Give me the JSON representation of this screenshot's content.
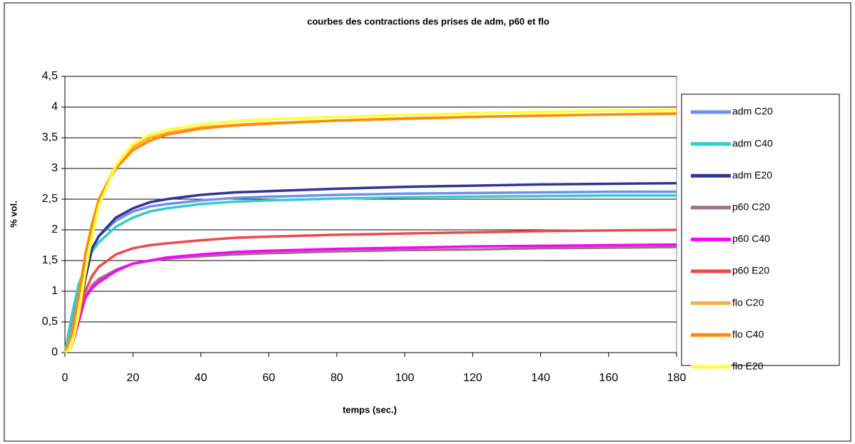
{
  "chart_data": {
    "type": "line",
    "title": "courbes des contractions des prises de adm, p60 et flo",
    "x_label": "temps (sec.)",
    "y_label": "% vol.",
    "x": [
      0,
      2,
      4,
      6,
      8,
      10,
      15,
      20,
      25,
      30,
      40,
      50,
      60,
      80,
      100,
      120,
      140,
      160,
      180
    ],
    "series": [
      {
        "name": "adm C20",
        "color": "#6f8ff0",
        "values": [
          0,
          0.5,
          1.0,
          1.4,
          1.7,
          1.9,
          2.15,
          2.3,
          2.38,
          2.42,
          2.48,
          2.52,
          2.54,
          2.57,
          2.59,
          2.6,
          2.61,
          2.62,
          2.62
        ]
      },
      {
        "name": "adm C40",
        "color": "#33cccc",
        "values": [
          0,
          0.6,
          1.1,
          1.4,
          1.65,
          1.8,
          2.05,
          2.2,
          2.3,
          2.35,
          2.42,
          2.46,
          2.48,
          2.51,
          2.53,
          2.54,
          2.55,
          2.56,
          2.56
        ]
      },
      {
        "name": "adm E20",
        "color": "#333399",
        "values": [
          0,
          0.1,
          0.6,
          1.2,
          1.7,
          1.9,
          2.2,
          2.35,
          2.45,
          2.5,
          2.57,
          2.61,
          2.63,
          2.67,
          2.7,
          2.72,
          2.74,
          2.75,
          2.76
        ]
      },
      {
        "name": "p60 C20",
        "color": "#a0708a",
        "values": [
          0,
          0.1,
          0.5,
          0.9,
          1.1,
          1.2,
          1.35,
          1.45,
          1.5,
          1.53,
          1.57,
          1.6,
          1.62,
          1.65,
          1.67,
          1.68,
          1.7,
          1.71,
          1.72
        ]
      },
      {
        "name": "p60 C40",
        "color": "#ff00ff",
        "values": [
          0,
          0.1,
          0.5,
          0.9,
          1.05,
          1.15,
          1.33,
          1.45,
          1.5,
          1.55,
          1.6,
          1.64,
          1.66,
          1.69,
          1.71,
          1.73,
          1.74,
          1.75,
          1.76
        ]
      },
      {
        "name": "p60 E20",
        "color": "#f04848",
        "values": [
          0,
          0.1,
          0.6,
          1.0,
          1.25,
          1.4,
          1.6,
          1.7,
          1.75,
          1.78,
          1.83,
          1.87,
          1.89,
          1.92,
          1.94,
          1.96,
          1.98,
          1.99,
          2.0
        ]
      },
      {
        "name": "flo C20",
        "color": "#ffaa44",
        "values": [
          0,
          0.3,
          0.9,
          1.6,
          2.1,
          2.5,
          3.05,
          3.35,
          3.5,
          3.58,
          3.67,
          3.71,
          3.74,
          3.78,
          3.82,
          3.84,
          3.86,
          3.88,
          3.9
        ]
      },
      {
        "name": "flo C40",
        "color": "#ff8c00",
        "values": [
          0,
          0.3,
          0.9,
          1.6,
          2.1,
          2.5,
          3.0,
          3.3,
          3.45,
          3.55,
          3.65,
          3.7,
          3.73,
          3.78,
          3.81,
          3.84,
          3.86,
          3.88,
          3.89
        ]
      },
      {
        "name": "flo E20",
        "color": "#ffff33",
        "values": [
          0,
          0.1,
          0.6,
          1.3,
          1.9,
          2.4,
          3.05,
          3.4,
          3.55,
          3.63,
          3.72,
          3.77,
          3.8,
          3.84,
          3.87,
          3.9,
          3.92,
          3.94,
          3.96
        ]
      }
    ],
    "xlim": [
      0,
      180
    ],
    "xticks": [
      0,
      20,
      40,
      60,
      80,
      100,
      120,
      140,
      160,
      180
    ],
    "ylim": [
      0,
      4.5
    ],
    "yticks": [
      0,
      {
        "value": 0.5,
        "label": "0,5"
      },
      1,
      {
        "value": 1.5,
        "label": "1,5"
      },
      2,
      {
        "value": 2.5,
        "label": "2,5"
      },
      3,
      {
        "value": 3.5,
        "label": "3,5"
      },
      4,
      {
        "value": 4.5,
        "label": "4,5"
      }
    ],
    "grid": true,
    "legend": "right"
  }
}
